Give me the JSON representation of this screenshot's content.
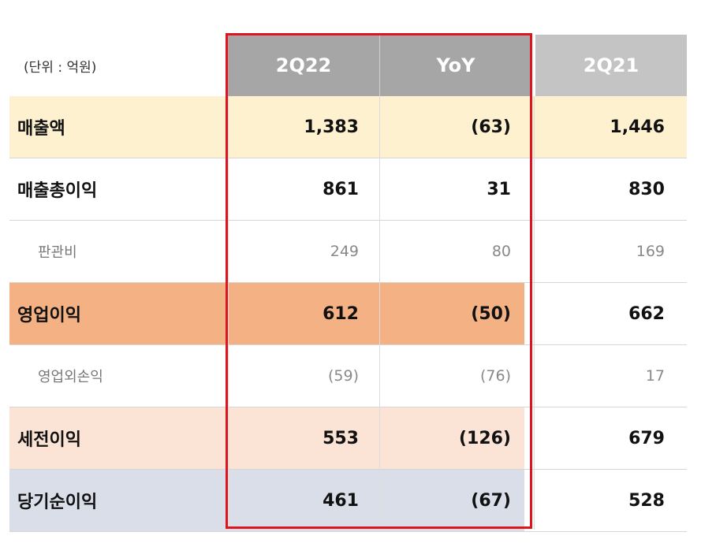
{
  "unit_label": "(단위 : 억원)",
  "columns": [
    "2Q22",
    "YoY",
    "2Q21"
  ],
  "rows": [
    {
      "label": "매출액",
      "values": [
        "1,383",
        "(63)",
        "1,446"
      ]
    },
    {
      "label": "매출총이익",
      "values": [
        "861",
        "31",
        "830"
      ]
    },
    {
      "label": "판관비",
      "values": [
        "249",
        "80",
        "169"
      ]
    },
    {
      "label": "영업이익",
      "values": [
        "612",
        "(50)",
        "662"
      ]
    },
    {
      "label": "영업외손익",
      "values": [
        "(59)",
        "(76)",
        "17"
      ]
    },
    {
      "label": "세전이익",
      "values": [
        "553",
        "(126)",
        "679"
      ]
    },
    {
      "label": "당기순이익",
      "values": [
        "461",
        "(67)",
        "528"
      ]
    }
  ],
  "colors": {
    "header_highlight": "#a6a6a6",
    "header_other": "#c4c4c4",
    "row_revenue": "#fdf1d0",
    "row_operating_profit": "#f4b183",
    "row_pretax": "#fbe3d6",
    "row_net_income": "#d9dee8",
    "highlight_border": "#e0141e"
  }
}
